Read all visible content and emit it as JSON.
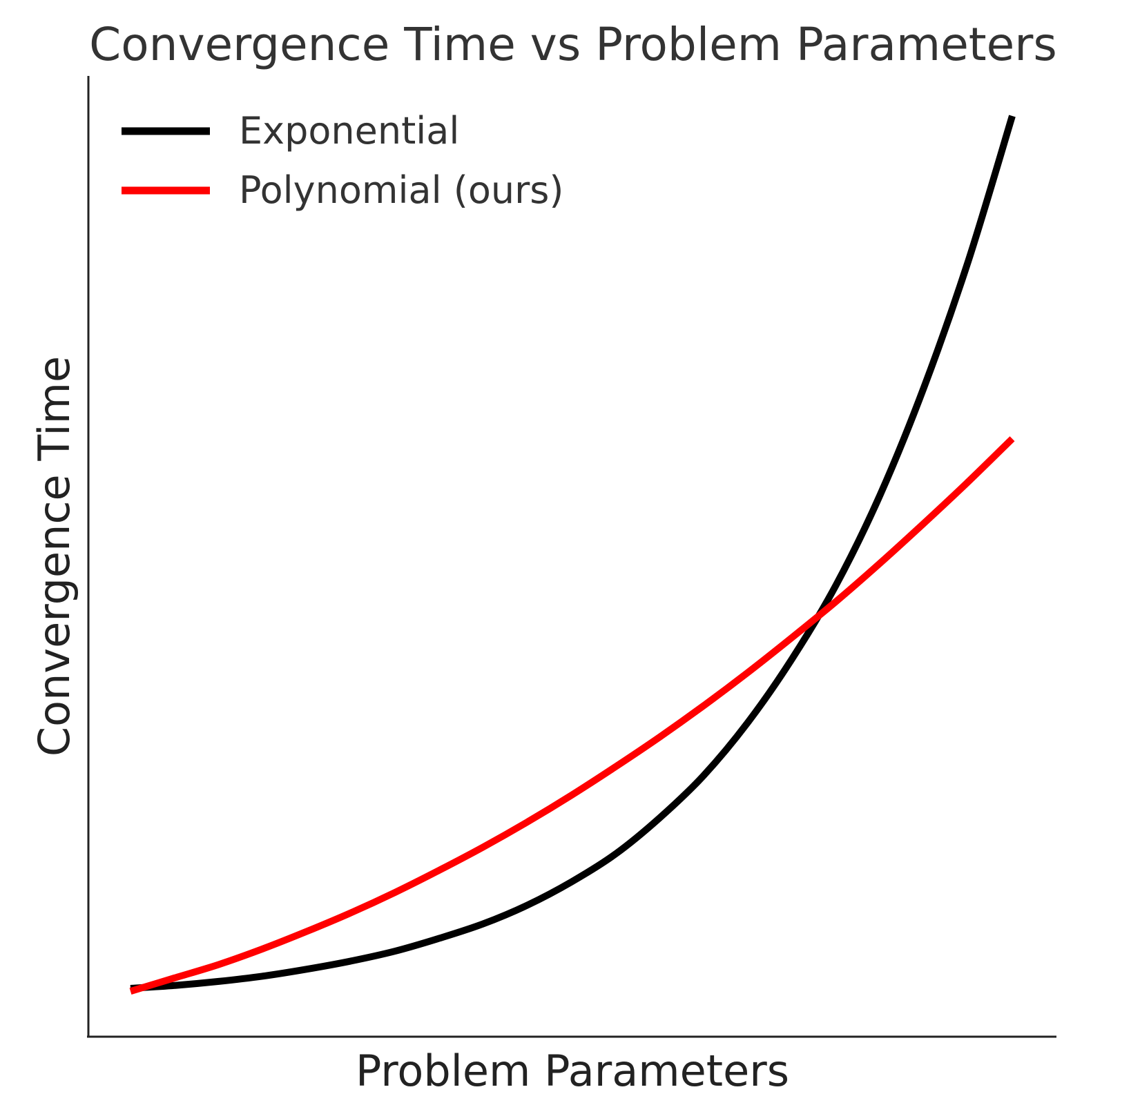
{
  "chart_data": {
    "type": "line",
    "title": "Convergence Time vs Problem Parameters",
    "xlabel": "Problem Parameters",
    "ylabel": "Convergence Time",
    "ticks_visible": false,
    "grid": false,
    "legend_position": "top-left",
    "series": [
      {
        "name": "Exponential",
        "color": "#000000",
        "points": [
          [
            0.0,
            0.0
          ],
          [
            0.05,
            0.005
          ],
          [
            0.1,
            0.012
          ],
          [
            0.15,
            0.021
          ],
          [
            0.2,
            0.033
          ],
          [
            0.25,
            0.047
          ],
          [
            0.3,
            0.064
          ],
          [
            0.35,
            0.086
          ],
          [
            0.4,
            0.111
          ],
          [
            0.45,
            0.143
          ],
          [
            0.5,
            0.183
          ],
          [
            0.55,
            0.231
          ],
          [
            0.6,
            0.293
          ],
          [
            0.65,
            0.366
          ],
          [
            0.7,
            0.457
          ],
          [
            0.75,
            0.566
          ],
          [
            0.8,
            0.693
          ],
          [
            0.85,
            0.848
          ],
          [
            0.9,
            1.034
          ],
          [
            0.95,
            1.25
          ],
          [
            1.0,
            1.5
          ]
        ]
      },
      {
        "name": "Polynomial (ours)",
        "color": "#ff0000",
        "points": [
          [
            0.0,
            -0.005
          ],
          [
            0.05,
            0.018
          ],
          [
            0.1,
            0.041
          ],
          [
            0.15,
            0.068
          ],
          [
            0.2,
            0.098
          ],
          [
            0.25,
            0.13
          ],
          [
            0.3,
            0.165
          ],
          [
            0.35,
            0.203
          ],
          [
            0.4,
            0.243
          ],
          [
            0.45,
            0.286
          ],
          [
            0.5,
            0.332
          ],
          [
            0.55,
            0.381
          ],
          [
            0.6,
            0.432
          ],
          [
            0.65,
            0.486
          ],
          [
            0.7,
            0.543
          ],
          [
            0.75,
            0.603
          ],
          [
            0.8,
            0.665
          ],
          [
            0.85,
            0.731
          ],
          [
            0.9,
            0.8
          ],
          [
            0.95,
            0.871
          ],
          [
            1.0,
            0.945
          ]
        ]
      }
    ]
  }
}
